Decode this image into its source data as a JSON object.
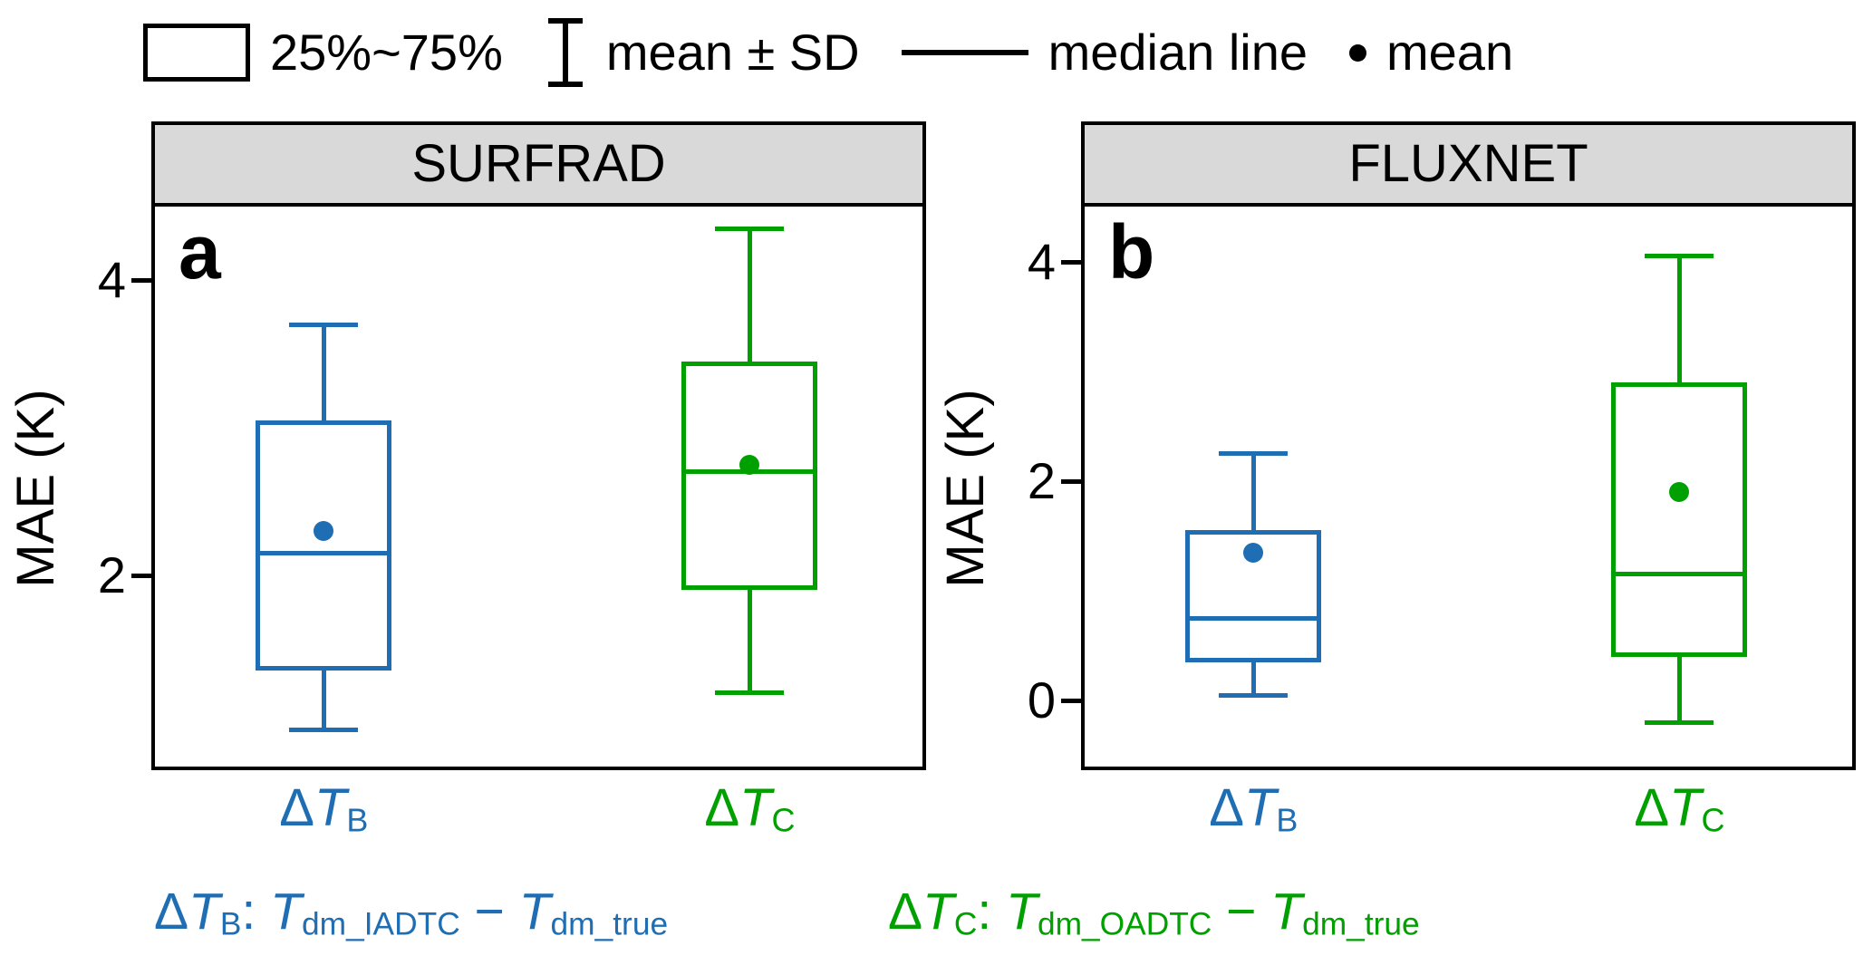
{
  "legend": {
    "box_label": "25%~75%",
    "sd_label": "mean ± SD",
    "median_label": "median line",
    "mean_label": "mean"
  },
  "ylabel": "MAE (K)",
  "colors": {
    "blue": "#1f6eb4",
    "green": "#00a000",
    "header_bg": "#d9d9d9",
    "axis": "#000000"
  },
  "chart_data": {
    "type": "boxplot",
    "ylabel": "MAE (K)",
    "panels": [
      {
        "letter": "a",
        "title": "SURFRAD",
        "ylim": [
          0.7,
          4.5
        ],
        "yticks": [
          2,
          4
        ],
        "series": [
          {
            "name": "ΔT_B",
            "label_parts": [
              {
                "t": "Δ"
              },
              {
                "t": "T",
                "italic": true
              },
              {
                "t": "B",
                "sub": true
              }
            ],
            "color_key": "blue",
            "pos": 0.22,
            "whisker_low": 0.95,
            "q1": 1.35,
            "median": 2.15,
            "mean": 2.3,
            "q3": 3.05,
            "whisker_high": 3.7
          },
          {
            "name": "ΔT_C",
            "label_parts": [
              {
                "t": "Δ"
              },
              {
                "t": "T",
                "italic": true
              },
              {
                "t": "C",
                "sub": true
              }
            ],
            "color_key": "green",
            "pos": 0.775,
            "whisker_low": 1.2,
            "q1": 1.9,
            "median": 2.7,
            "mean": 2.75,
            "q3": 3.45,
            "whisker_high": 4.35
          }
        ]
      },
      {
        "letter": "b",
        "title": "FLUXNET",
        "ylim": [
          -0.6,
          4.5
        ],
        "yticks": [
          0,
          2,
          4
        ],
        "series": [
          {
            "name": "ΔT_B",
            "label_parts": [
              {
                "t": "Δ"
              },
              {
                "t": "T",
                "italic": true
              },
              {
                "t": "B",
                "sub": true
              }
            ],
            "color_key": "blue",
            "pos": 0.22,
            "whisker_low": 0.05,
            "q1": 0.35,
            "median": 0.75,
            "mean": 1.35,
            "q3": 1.55,
            "whisker_high": 2.25
          },
          {
            "name": "ΔT_C",
            "label_parts": [
              {
                "t": "Δ"
              },
              {
                "t": "T",
                "italic": true
              },
              {
                "t": "C",
                "sub": true
              }
            ],
            "color_key": "green",
            "pos": 0.775,
            "whisker_low": -0.2,
            "q1": 0.4,
            "median": 1.15,
            "mean": 1.9,
            "q3": 2.9,
            "whisker_high": 4.05
          }
        ]
      }
    ]
  },
  "captions": [
    {
      "color_key": "blue",
      "parts": [
        {
          "t": "Δ"
        },
        {
          "t": "T",
          "italic": true
        },
        {
          "t": "B",
          "sub": true
        },
        {
          "t": ": "
        },
        {
          "t": "T",
          "italic": true
        },
        {
          "t": "dm_IADTC",
          "sub": true
        },
        {
          "t": " − "
        },
        {
          "t": "T",
          "italic": true
        },
        {
          "t": "dm_true",
          "sub": true
        }
      ]
    },
    {
      "color_key": "green",
      "parts": [
        {
          "t": "Δ"
        },
        {
          "t": "T",
          "italic": true
        },
        {
          "t": "C",
          "sub": true
        },
        {
          "t": ": "
        },
        {
          "t": "T",
          "italic": true
        },
        {
          "t": "dm_OADTC",
          "sub": true
        },
        {
          "t": " − "
        },
        {
          "t": "T",
          "italic": true
        },
        {
          "t": "dm_true",
          "sub": true
        }
      ]
    }
  ]
}
